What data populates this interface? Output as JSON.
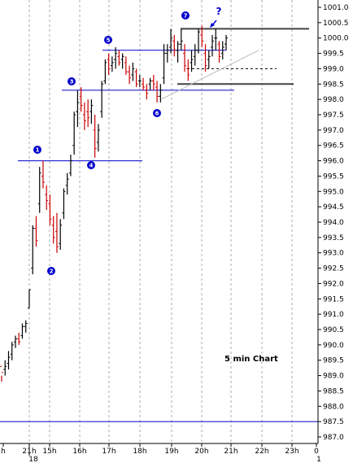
{
  "chart_data": {
    "type": "bar",
    "style": "ohlc",
    "subtitle": "5 min Chart",
    "yaxis": {
      "min": 986.9,
      "max": 1001.2,
      "ticks": [
        "1001.0",
        "1000.5",
        "1000.0",
        "999.5",
        "999.0",
        "998.5",
        "998.0",
        "997.5",
        "997.0",
        "996.5",
        "996.0",
        "995.5",
        "995.0",
        "994.5",
        "994.0",
        "993.5",
        "993.0",
        "992.5",
        "992.0",
        "991.5",
        "991.0",
        "990.5",
        "990.0",
        "989.5",
        "989.0",
        "988.5",
        "988.0",
        "987.5",
        "987.0"
      ],
      "side": "right"
    },
    "xaxis": {
      "ticks": [
        "h",
        "21h",
        "15h",
        "16h",
        "17h",
        "18h",
        "19h",
        "20h",
        "21h",
        "22h",
        "23h",
        "0"
      ],
      "sublabels": [
        "18",
        "1"
      ]
    },
    "grid": {
      "vertical": "dashed",
      "horizontal": false
    },
    "bars": [
      [
        989.3,
        989.0,
        988.8,
        989.1
      ],
      [
        989.2,
        989.5,
        989.0,
        989.3
      ],
      [
        989.4,
        989.8,
        989.2,
        989.6
      ],
      [
        989.7,
        990.1,
        989.5,
        990.0
      ],
      [
        990.1,
        990.3,
        989.9,
        990.2
      ],
      [
        990.2,
        990.4,
        990.0,
        990.1
      ],
      [
        990.3,
        990.7,
        990.2,
        990.6
      ],
      [
        990.6,
        990.8,
        990.4,
        990.7
      ],
      [
        991.2,
        991.8,
        991.2,
        991.8
      ],
      [
        992.5,
        993.9,
        992.3,
        993.8
      ],
      [
        993.8,
        994.2,
        993.2,
        993.4
      ],
      [
        994.6,
        995.8,
        994.3,
        995.6
      ],
      [
        995.5,
        996.0,
        995.1,
        995.3
      ],
      [
        994.9,
        995.2,
        994.4,
        994.7
      ],
      [
        994.6,
        994.9,
        993.9,
        994.1
      ],
      [
        993.9,
        994.2,
        993.3,
        993.5
      ],
      [
        993.7,
        994.3,
        993.0,
        993.2
      ],
      [
        993.3,
        994.1,
        993.1,
        993.9
      ],
      [
        994.3,
        995.1,
        994.1,
        995.0
      ],
      [
        995.2,
        995.6,
        994.9,
        995.4
      ],
      [
        995.6,
        996.2,
        995.5,
        996.0
      ],
      [
        996.5,
        997.6,
        996.2,
        997.5
      ],
      [
        997.6,
        998.3,
        997.1,
        997.9
      ],
      [
        998.1,
        998.4,
        997.6,
        997.8
      ],
      [
        997.5,
        997.9,
        997.0,
        997.3
      ],
      [
        997.6,
        998.0,
        997.1,
        997.4
      ],
      [
        997.6,
        998.0,
        997.2,
        997.8
      ],
      [
        997.0,
        997.5,
        996.1,
        996.4
      ],
      [
        996.6,
        997.2,
        996.3,
        997.0
      ],
      [
        997.6,
        998.6,
        997.4,
        998.5
      ],
      [
        998.6,
        999.3,
        998.5,
        999.2
      ],
      [
        999.3,
        999.5,
        998.8,
        999.0
      ],
      [
        999.1,
        999.4,
        998.9,
        999.2
      ],
      [
        999.3,
        999.7,
        999.0,
        999.5
      ],
      [
        999.4,
        999.6,
        999.1,
        999.2
      ],
      [
        999.3,
        999.5,
        999.0,
        999.4
      ],
      [
        999.2,
        999.4,
        998.8,
        998.9
      ],
      [
        998.9,
        999.1,
        998.5,
        998.7
      ],
      [
        998.8,
        999.2,
        998.6,
        999.0
      ],
      [
        998.9,
        999.0,
        998.4,
        998.5
      ],
      [
        998.6,
        998.8,
        998.4,
        998.6
      ],
      [
        998.5,
        998.7,
        998.3,
        998.4
      ],
      [
        998.3,
        998.5,
        998.0,
        998.2
      ],
      [
        998.5,
        998.7,
        998.3,
        998.6
      ],
      [
        998.6,
        998.8,
        998.3,
        998.5
      ],
      [
        998.4,
        998.6,
        997.9,
        998.1
      ],
      [
        998.1,
        998.5,
        997.9,
        998.3
      ],
      [
        998.7,
        999.8,
        998.5,
        999.5
      ],
      [
        999.5,
        999.8,
        999.2,
        999.6
      ],
      [
        999.7,
        1000.3,
        999.5,
        1000.0
      ],
      [
        999.9,
        1000.1,
        999.4,
        999.6
      ],
      [
        999.6,
        999.9,
        999.2,
        999.8
      ],
      [
        999.8,
        1000.3,
        999.6,
        999.9
      ],
      [
        999.5,
        999.8,
        998.9,
        999.1
      ],
      [
        999.0,
        999.3,
        998.6,
        998.8
      ],
      [
        999.2,
        999.6,
        998.9,
        999.3
      ],
      [
        999.4,
        999.8,
        999.1,
        999.6
      ],
      [
        999.6,
        1000.3,
        999.5,
        1000.2
      ],
      [
        1000.1,
        1000.4,
        999.7,
        999.9
      ],
      [
        999.5,
        999.8,
        998.9,
        999.1
      ],
      [
        999.3,
        999.6,
        999.0,
        999.4
      ],
      [
        999.7,
        1000.1,
        999.4,
        999.9
      ],
      [
        1000.0,
        1000.3,
        999.6,
        1000.0
      ],
      [
        999.8,
        999.9,
        999.2,
        999.4
      ],
      [
        999.5,
        999.9,
        999.3,
        999.7
      ],
      [
        999.8,
        1000.1,
        999.6,
        1000.0
      ]
    ],
    "annotations": {
      "wave_labels": [
        "1",
        "2",
        "3",
        "4",
        "5",
        "6",
        "7"
      ],
      "question_mark": "?",
      "levels": [
        {
          "value": 996.0,
          "color": "#0000cc"
        },
        {
          "value": 998.3,
          "color": "#0000cc"
        },
        {
          "value": 999.6,
          "color": "#0000cc"
        },
        {
          "value": 987.5,
          "color": "#0000cc"
        },
        {
          "value": 1000.3,
          "color": "#444444"
        },
        {
          "value": 998.5,
          "color": "#444444"
        },
        {
          "value": 999.0,
          "color": "#000000",
          "dashed": true
        }
      ]
    },
    "colors": {
      "up": "#000000",
      "down": "#cc0000",
      "annotation": "#0000cc",
      "axis": "#000000",
      "grid": "#999999"
    }
  }
}
